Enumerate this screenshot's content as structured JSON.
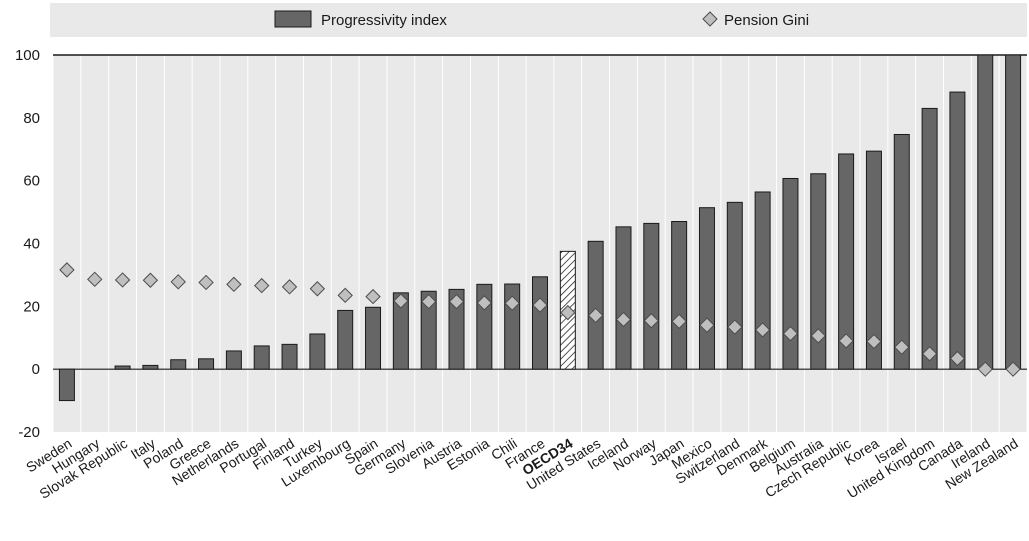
{
  "chart_data": {
    "type": "bar",
    "legend": {
      "position": "top",
      "items": [
        {
          "label": "Progressivity index",
          "marker": "bar",
          "color": "#666666"
        },
        {
          "label": "Pension Gini",
          "marker": "diamond",
          "color": "#bfbfbf"
        }
      ]
    },
    "ylim": [
      -20,
      100
    ],
    "yticks": [
      -20,
      0,
      20,
      40,
      60,
      80,
      100
    ],
    "grid": "vertical",
    "highlight_category": "OECD34",
    "categories": [
      "Sweden",
      "Hungary",
      "Slovak Republic",
      "Italy",
      "Poland",
      "Greece",
      "Netherlands",
      "Portugal",
      "Finland",
      "Turkey",
      "Luxembourg",
      "Spain",
      "Germany",
      "Slovenia",
      "Austria",
      "Estonia",
      "Chili",
      "France",
      "OECD34",
      "United States",
      "Iceland",
      "Norway",
      "Japan",
      "Mexico",
      "Switzerland",
      "Denmark",
      "Belgium",
      "Australia",
      "Czech Republic",
      "Korea",
      "Israel",
      "United Kingdom",
      "Canada",
      "Ireland",
      "New Zealand"
    ],
    "series": [
      {
        "name": "Progressivity index",
        "kind": "bar",
        "values": [
          -10,
          0,
          1,
          1.2,
          3,
          3.3,
          5.8,
          7.4,
          7.9,
          11.2,
          18.7,
          19.7,
          24.3,
          24.8,
          25.4,
          27,
          27.1,
          29.4,
          37.5,
          40.7,
          45.3,
          46.4,
          47,
          51.4,
          53.1,
          56.4,
          60.7,
          62.2,
          68.5,
          69.4,
          74.7,
          83,
          88.2,
          100,
          100
        ]
      },
      {
        "name": "Pension Gini",
        "kind": "diamond",
        "values": [
          31.6,
          28.6,
          28.4,
          28.3,
          27.8,
          27.6,
          27,
          26.6,
          26.2,
          25.6,
          23.5,
          23.1,
          21.7,
          21.5,
          21.5,
          21.1,
          21,
          20.4,
          18,
          17.1,
          15.8,
          15.4,
          15.2,
          14,
          13.4,
          12.5,
          11.3,
          10.6,
          9,
          8.8,
          7,
          4.9,
          3.4,
          0,
          0
        ]
      }
    ],
    "colors": {
      "bar_fill": "#666666",
      "bar_stroke": "#1a1a1a",
      "diamond_fill": "#bfbfbf",
      "diamond_stroke": "#4d4d4d",
      "legend_band": "#e9e9e9",
      "grid": "#ffffff",
      "plot_bg": "#e9e9e9"
    }
  }
}
